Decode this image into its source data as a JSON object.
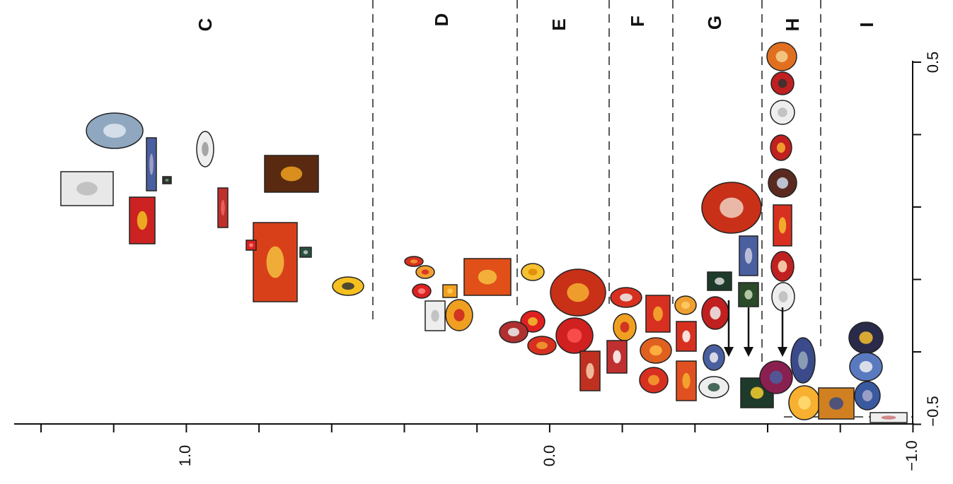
{
  "groups": [
    "C",
    "D",
    "E",
    "F",
    "G",
    "H",
    "I"
  ],
  "x_axis": {
    "labels": [
      "1.0",
      "0.0",
      "−1.0"
    ]
  },
  "y_axis": {
    "labels": [
      "0.5",
      "−0.5"
    ]
  }
}
